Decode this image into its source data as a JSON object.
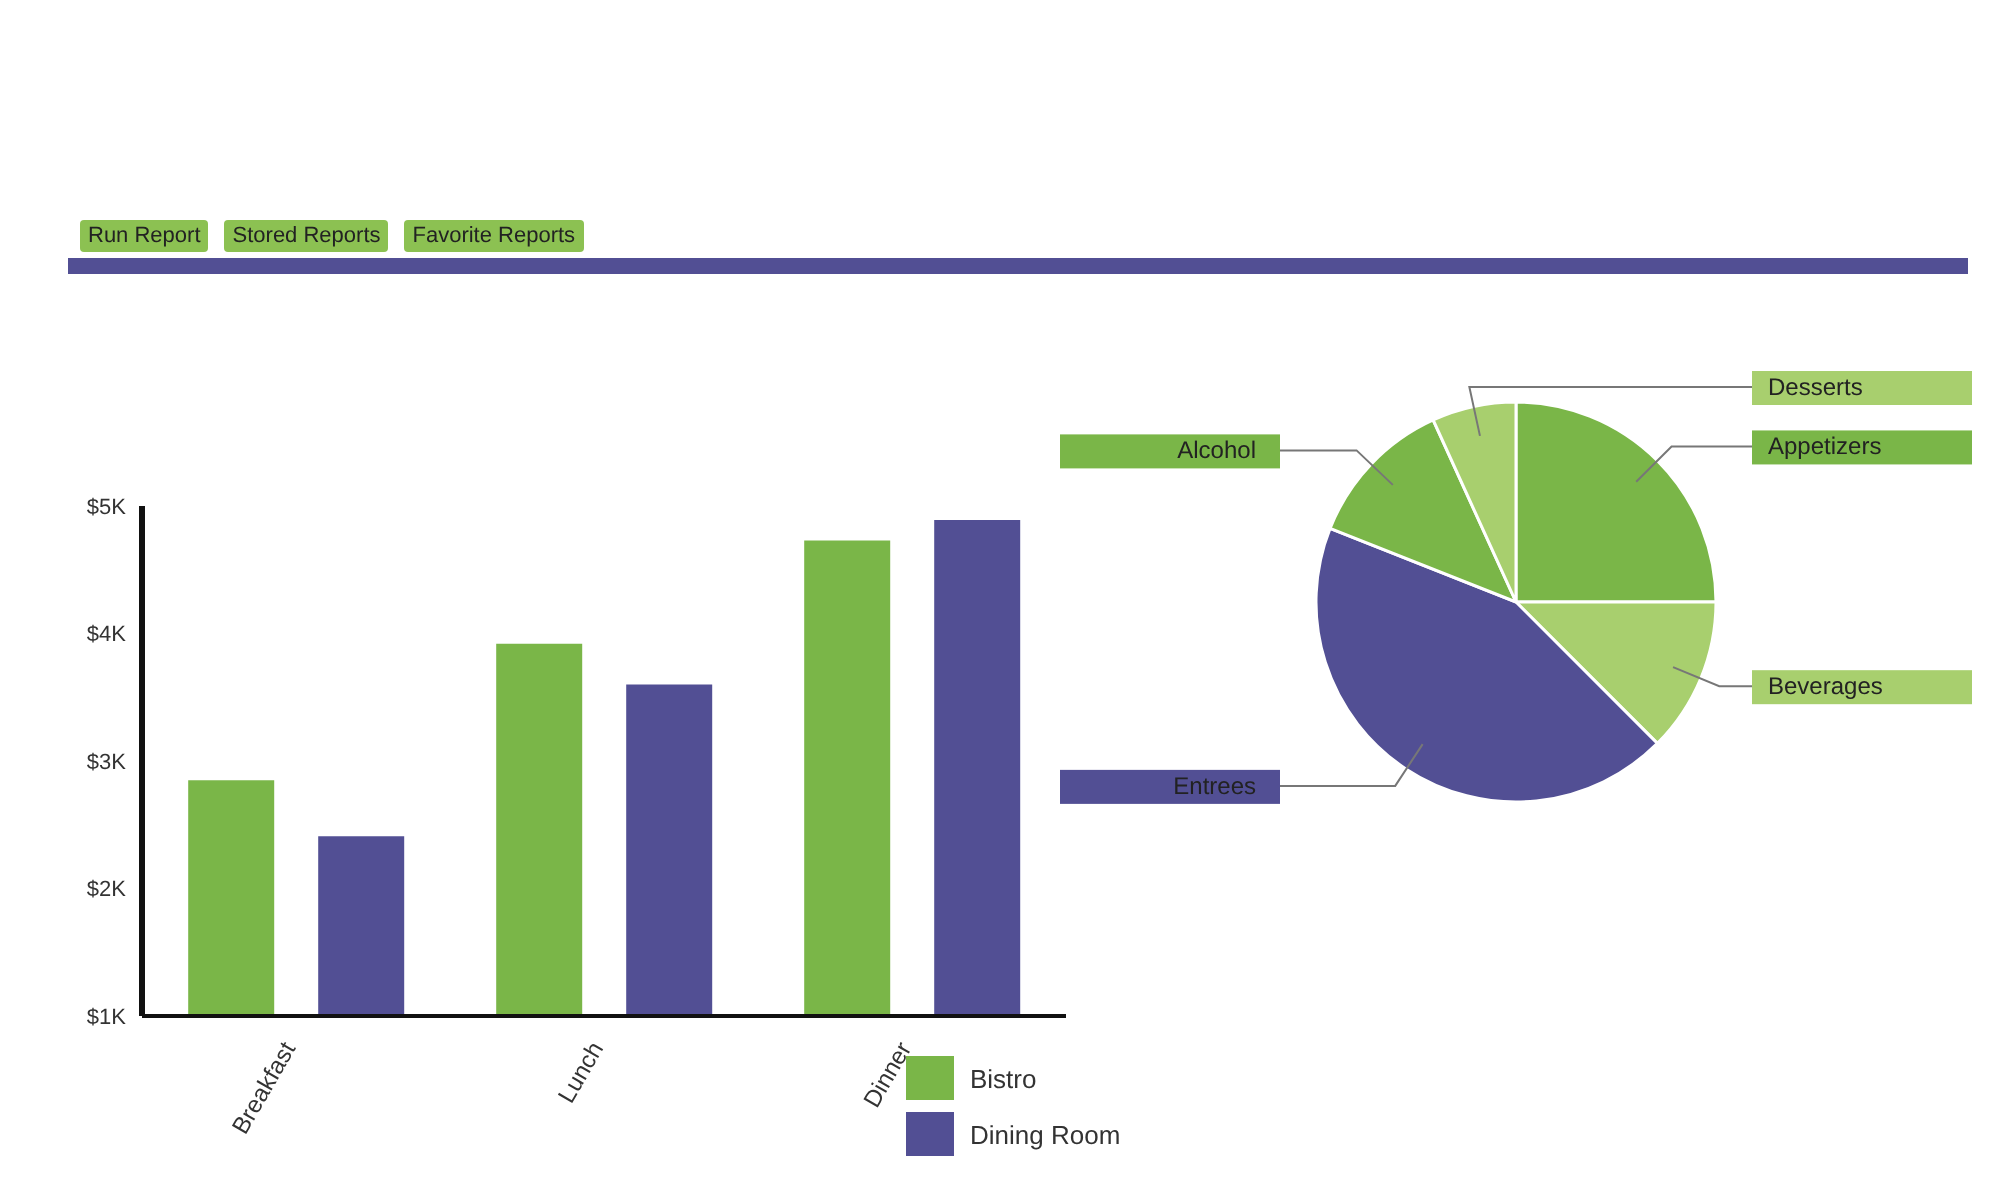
{
  "chart_data": [
    {
      "type": "bar",
      "annotations": [
        "Run Report",
        "Stored Reports",
        "Favorite Reports"
      ],
      "categories": [
        "Breakfast",
        "Lunch",
        "Dinner"
      ],
      "series": [
        {
          "name": "Bistro",
          "color": "#7ab648",
          "values": [
            2.85,
            3.92,
            4.73
          ]
        },
        {
          "name": "Dining Room",
          "color": "#524f94",
          "values": [
            2.41,
            3.6,
            4.89
          ]
        }
      ],
      "ylim": [
        1,
        5
      ],
      "yticks": [
        {
          "value": 1,
          "label": "$1K"
        },
        {
          "value": 2,
          "label": "$2K"
        },
        {
          "value": 3,
          "label": "$3K"
        },
        {
          "value": 4,
          "label": "$4K"
        },
        {
          "value": 5,
          "label": "$5K"
        }
      ],
      "legend": "bottom right"
    },
    {
      "type": "pie",
      "categories": [
        "Appetizers",
        "Beverages",
        "Entrees",
        "Alcohol",
        "Desserts"
      ],
      "values": [
        25,
        12.5,
        43.5,
        12.2,
        6.8
      ],
      "colors": [
        "#7ab648",
        "#a8cf6e",
        "#524f94",
        "#7ab648",
        "#a8cf6e"
      ]
    }
  ]
}
